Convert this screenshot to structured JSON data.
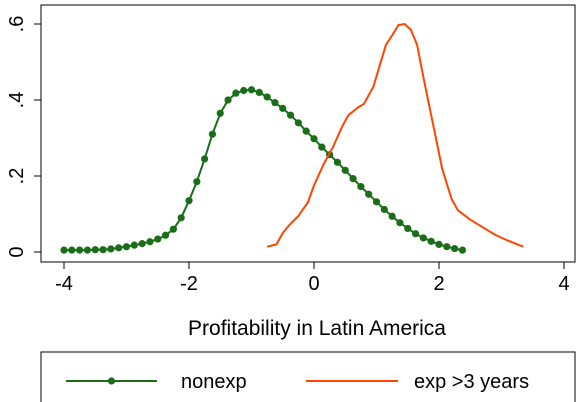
{
  "chart_data": {
    "type": "line",
    "xlabel": "Profitability in Latin America",
    "ylabel": "",
    "xlim": [
      -4.2,
      4.1
    ],
    "ylim": [
      -0.015,
      0.625
    ],
    "x_ticks": [
      "-4",
      "-2",
      "0",
      "2",
      "4"
    ],
    "x_tick_values": [
      -4,
      -2,
      0,
      2,
      4
    ],
    "y_ticks": [
      "0",
      ".2",
      ".4",
      ".6"
    ],
    "y_tick_values": [
      0,
      0.2,
      0.4,
      0.6
    ],
    "grid": false,
    "legend_position": "bottom",
    "series": [
      {
        "name": "nonexp",
        "color": "#1a6e1a",
        "marker": "circle",
        "x": [
          -4.0,
          -3.875,
          -3.75,
          -3.625,
          -3.5,
          -3.375,
          -3.25,
          -3.125,
          -3.0,
          -2.875,
          -2.75,
          -2.625,
          -2.5,
          -2.375,
          -2.25,
          -2.125,
          -2.0,
          -1.875,
          -1.75,
          -1.625,
          -1.5,
          -1.375,
          -1.25,
          -1.125,
          -1.0,
          -0.875,
          -0.75,
          -0.625,
          -0.5,
          -0.375,
          -0.25,
          -0.125,
          0.0,
          0.125,
          0.25,
          0.375,
          0.5,
          0.625,
          0.75,
          0.875,
          1.0,
          1.125,
          1.25,
          1.375,
          1.5,
          1.625,
          1.75,
          1.875,
          2.0,
          2.125,
          2.25,
          2.375
        ],
        "y": [
          0.005,
          0.005,
          0.005,
          0.005,
          0.006,
          0.006,
          0.008,
          0.011,
          0.014,
          0.018,
          0.022,
          0.027,
          0.034,
          0.044,
          0.06,
          0.09,
          0.135,
          0.185,
          0.245,
          0.31,
          0.365,
          0.4,
          0.418,
          0.425,
          0.427,
          0.42,
          0.408,
          0.393,
          0.378,
          0.36,
          0.34,
          0.318,
          0.298,
          0.276,
          0.256,
          0.236,
          0.215,
          0.193,
          0.172,
          0.152,
          0.132,
          0.112,
          0.094,
          0.077,
          0.062,
          0.048,
          0.037,
          0.028,
          0.02,
          0.014,
          0.009,
          0.005
        ]
      },
      {
        "name": "exp >3 years",
        "color": "#ff4500",
        "marker": "none",
        "x": [
          -0.75,
          -0.6,
          -0.5,
          -0.4,
          -0.25,
          -0.1,
          0.0,
          0.15,
          0.3,
          0.45,
          0.55,
          0.7,
          0.8,
          0.95,
          1.05,
          1.15,
          1.25,
          1.35,
          1.45,
          1.55,
          1.65,
          1.75,
          1.85,
          1.95,
          2.05,
          2.2,
          2.3,
          2.5,
          2.7,
          2.9,
          3.1,
          3.35
        ],
        "y": [
          0.014,
          0.02,
          0.05,
          0.07,
          0.095,
          0.13,
          0.175,
          0.23,
          0.275,
          0.33,
          0.36,
          0.38,
          0.39,
          0.435,
          0.49,
          0.545,
          0.57,
          0.597,
          0.6,
          0.585,
          0.545,
          0.46,
          0.38,
          0.3,
          0.22,
          0.14,
          0.11,
          0.085,
          0.065,
          0.045,
          0.03,
          0.014
        ]
      }
    ]
  }
}
